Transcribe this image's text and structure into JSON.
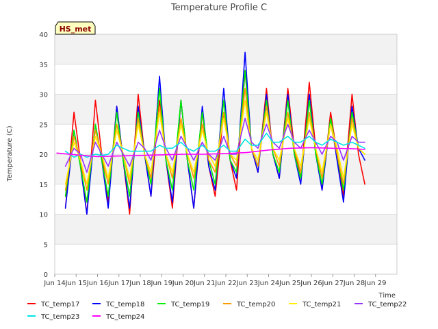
{
  "chart_data": {
    "type": "line",
    "title": "Temperature Profile C",
    "xlabel": "Time",
    "ylabel": "Temperature (C)",
    "station_badge": "HS_met",
    "ylim": [
      0,
      40
    ],
    "yticks": [
      0,
      5,
      10,
      15,
      20,
      25,
      30,
      35,
      40
    ],
    "xlim": [
      13,
      29
    ],
    "xticks": [
      {
        "value": 13,
        "label": "Jun 14"
      },
      {
        "value": 14,
        "label": "Jun 15"
      },
      {
        "value": 15,
        "label": "Jun 16"
      },
      {
        "value": 16,
        "label": "Jun 17"
      },
      {
        "value": 17,
        "label": "Jun 18"
      },
      {
        "value": 18,
        "label": "Jun 19"
      },
      {
        "value": 19,
        "label": "Jun 20"
      },
      {
        "value": 20,
        "label": "Jun 21"
      },
      {
        "value": 21,
        "label": "Jun 22"
      },
      {
        "value": 22,
        "label": "Jun 23"
      },
      {
        "value": 23,
        "label": "Jun 24"
      },
      {
        "value": 24,
        "label": "Jun 25"
      },
      {
        "value": 25,
        "label": "Jun 26"
      },
      {
        "value": 26,
        "label": "Jun 27"
      },
      {
        "value": 27,
        "label": "Jun 28"
      },
      {
        "value": 28,
        "label": "Jun 29"
      }
    ],
    "x_unit": "day of June (fractional, tick value v = Jun v+1)",
    "grid": "horizontal bands",
    "legend_position": "bottom",
    "series": [
      {
        "name": "TC_temp17",
        "color": "#ff0000",
        "x": [
          13.5,
          13.9,
          14.2,
          14.5,
          14.9,
          15.2,
          15.5,
          15.9,
          16.2,
          16.5,
          16.9,
          17.2,
          17.5,
          17.9,
          18.2,
          18.5,
          18.9,
          19.2,
          19.5,
          19.9,
          20.2,
          20.5,
          20.9,
          21.2,
          21.5,
          21.9,
          22.2,
          22.5,
          22.9,
          23.2,
          23.5,
          23.9,
          24.2,
          24.5,
          24.9,
          25.2,
          25.5,
          25.9,
          26.2,
          26.5,
          26.9,
          27.2,
          27.5
        ],
        "y": [
          11,
          27,
          19,
          10,
          29,
          20,
          12,
          28,
          19,
          10,
          30,
          20,
          13,
          29,
          19,
          11,
          29,
          19,
          11,
          27,
          18,
          13,
          27,
          19,
          14,
          34,
          21,
          17,
          31,
          20,
          16,
          31,
          21,
          16,
          32,
          21,
          14,
          27,
          20,
          13,
          30,
          20,
          15
        ]
      },
      {
        "name": "TC_temp18",
        "color": "#0000ff",
        "x": [
          13.5,
          13.9,
          14.2,
          14.5,
          14.9,
          15.2,
          15.5,
          15.9,
          16.2,
          16.5,
          16.9,
          17.2,
          17.5,
          17.9,
          18.2,
          18.5,
          18.9,
          19.2,
          19.5,
          19.9,
          20.2,
          20.5,
          20.9,
          21.2,
          21.5,
          21.9,
          22.2,
          22.5,
          22.9,
          23.2,
          23.5,
          23.9,
          24.2,
          24.5,
          24.9,
          25.2,
          25.5,
          25.9,
          26.2,
          26.5,
          26.9,
          27.2,
          27.5
        ],
        "y": [
          11,
          24,
          18,
          10,
          25,
          19,
          11,
          28,
          19,
          11,
          28,
          20,
          13,
          33,
          19,
          12,
          29,
          19,
          11,
          28,
          18,
          14,
          31,
          19,
          16,
          37,
          21,
          17,
          30,
          20,
          16,
          30,
          20,
          15,
          30,
          20,
          14,
          26,
          19,
          12,
          28,
          21,
          19
        ]
      },
      {
        "name": "TC_temp19",
        "color": "#00ee00",
        "x": [
          13.5,
          13.9,
          14.2,
          14.5,
          14.9,
          15.2,
          15.5,
          15.9,
          16.2,
          16.5,
          16.9,
          17.2,
          17.5,
          17.9,
          18.2,
          18.5,
          18.9,
          19.2,
          19.5,
          19.9,
          20.2,
          20.5,
          20.9,
          21.2,
          21.5,
          21.9,
          22.2,
          22.5,
          22.9,
          23.2,
          23.5,
          23.9,
          24.2,
          24.5,
          24.9,
          25.2,
          25.5,
          25.9,
          26.2,
          26.5,
          26.9,
          27.2,
          27.5
        ],
        "y": [
          13,
          24,
          18,
          12,
          25,
          19,
          13,
          27,
          19,
          13,
          27,
          20,
          15,
          31,
          19,
          14,
          29,
          19,
          14,
          27,
          19,
          15,
          29,
          19,
          17,
          34,
          21,
          18,
          29,
          20,
          17,
          29,
          20,
          16,
          29,
          20,
          15,
          26,
          20,
          14,
          27,
          21,
          20
        ]
      },
      {
        "name": "TC_temp20",
        "color": "#ff9900",
        "x": [
          13.5,
          13.9,
          14.2,
          14.5,
          14.9,
          15.2,
          15.5,
          15.9,
          16.2,
          16.5,
          16.9,
          17.2,
          17.5,
          17.9,
          18.2,
          18.5,
          18.9,
          19.2,
          19.5,
          19.9,
          20.2,
          20.5,
          20.9,
          21.2,
          21.5,
          21.9,
          22.2,
          22.5,
          22.9,
          23.2,
          23.5,
          23.9,
          24.2,
          24.5,
          24.9,
          25.2,
          25.5,
          25.9,
          26.2,
          26.5,
          26.9,
          27.2,
          27.5
        ],
        "y": [
          14,
          23,
          19,
          14,
          24,
          20,
          15,
          25,
          20,
          15,
          26,
          20,
          16,
          28,
          20,
          16,
          26,
          20,
          16,
          25,
          19,
          17,
          27,
          20,
          18,
          31,
          21,
          18,
          28,
          21,
          18,
          27,
          21,
          17,
          27,
          21,
          16,
          25,
          20,
          15,
          26,
          21,
          20
        ]
      },
      {
        "name": "TC_temp21",
        "color": "#ffee00",
        "x": [
          13.5,
          13.9,
          14.2,
          14.5,
          14.9,
          15.2,
          15.5,
          15.9,
          16.2,
          16.5,
          16.9,
          17.2,
          17.5,
          17.9,
          18.2,
          18.5,
          18.9,
          19.2,
          19.5,
          19.9,
          20.2,
          20.5,
          20.9,
          21.2,
          21.5,
          21.9,
          22.2,
          22.5,
          22.9,
          23.2,
          23.5,
          23.9,
          24.2,
          24.5,
          24.9,
          25.2,
          25.5,
          25.9,
          26.2,
          26.5,
          26.9,
          27.2,
          27.5
        ],
        "y": [
          15,
          22,
          19,
          15,
          23,
          20,
          16,
          24,
          20,
          16,
          25,
          20,
          17,
          27,
          20,
          17,
          25,
          20,
          17,
          24,
          20,
          18,
          26,
          20,
          19,
          29,
          21,
          19,
          27,
          21,
          19,
          26,
          21,
          18,
          26,
          21,
          17,
          25,
          21,
          16,
          25,
          21,
          20
        ]
      },
      {
        "name": "TC_temp22",
        "color": "#9933ff",
        "x": [
          13.5,
          13.9,
          14.2,
          14.5,
          14.9,
          15.2,
          15.5,
          15.9,
          16.2,
          16.5,
          16.9,
          17.2,
          17.5,
          17.9,
          18.2,
          18.5,
          18.9,
          19.2,
          19.5,
          19.9,
          20.2,
          20.5,
          20.9,
          21.2,
          21.5,
          21.9,
          22.2,
          22.5,
          22.9,
          23.2,
          23.5,
          23.9,
          24.2,
          24.5,
          24.9,
          25.2,
          25.5,
          25.9,
          26.2,
          26.5,
          26.9,
          27.2,
          27.5
        ],
        "y": [
          18,
          21,
          20,
          17,
          22,
          20,
          18,
          22,
          20,
          18,
          22,
          21,
          19,
          24,
          21,
          19,
          23,
          21,
          19,
          22,
          20,
          19,
          23,
          20,
          20,
          26,
          22,
          21,
          25,
          22,
          21,
          25,
          22,
          21,
          24,
          22,
          20,
          23,
          22,
          19,
          23,
          22,
          22
        ]
      },
      {
        "name": "TC_temp23",
        "color": "#00e5e5",
        "x": [
          13.5,
          13.9,
          14.2,
          14.5,
          14.9,
          15.2,
          15.5,
          15.9,
          16.2,
          16.5,
          16.9,
          17.2,
          17.5,
          17.9,
          18.2,
          18.5,
          18.9,
          19.2,
          19.5,
          19.9,
          20.2,
          20.5,
          20.9,
          21.2,
          21.5,
          21.9,
          22.2,
          22.5,
          22.9,
          23.2,
          23.5,
          23.9,
          24.2,
          24.5,
          24.9,
          25.2,
          25.5,
          25.9,
          26.2,
          26.5,
          26.9,
          27.2,
          27.5
        ],
        "y": [
          20.5,
          19.5,
          20,
          19.5,
          20,
          19.8,
          20,
          21.5,
          21,
          20.5,
          20.5,
          20.5,
          20.5,
          21.5,
          21,
          21,
          22,
          21,
          20.5,
          21.5,
          20.5,
          20.5,
          21.5,
          20.5,
          20.5,
          22.5,
          21.5,
          21.5,
          23.5,
          22,
          22,
          23,
          22,
          22,
          23,
          22,
          21.5,
          22.5,
          22,
          21.5,
          22,
          21.5,
          21
        ]
      },
      {
        "name": "TC_temp24",
        "color": "#ff00ff",
        "x": [
          13.1,
          14,
          15,
          16,
          17,
          18,
          19,
          20,
          21,
          22,
          23,
          24,
          25,
          26,
          27,
          27.5
        ],
        "y": [
          20.2,
          19.9,
          19.6,
          19.7,
          19.8,
          19.9,
          20.0,
          20.0,
          20.1,
          20.3,
          20.7,
          21.0,
          21.1,
          21.0,
          20.9,
          20.8
        ]
      }
    ]
  }
}
